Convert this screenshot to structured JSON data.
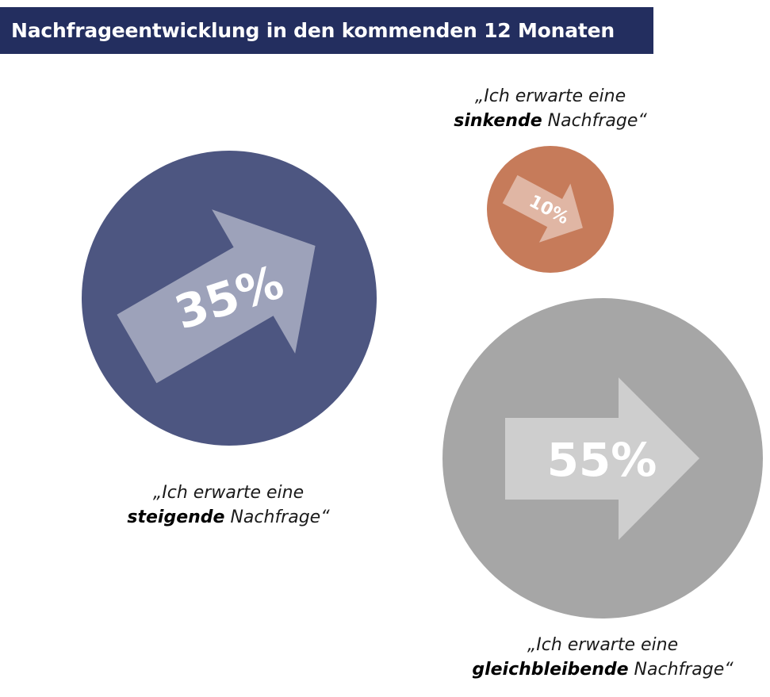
{
  "title": "Nachfrageentwicklung in den kommenden 12 Monaten",
  "colors": {
    "title_bg": "#232e5f",
    "rising": "#4d5681",
    "falling": "#c67b5a",
    "steady": "#a6a6a6",
    "label": "#ffffff"
  },
  "chart_data": {
    "type": "bubble",
    "title": "Nachfrageentwicklung in den kommenden 12 Monaten",
    "unit": "%",
    "series": [
      {
        "key": "rising",
        "value": 35,
        "label": "35%",
        "arrow_direction": "up-right",
        "caption_line1": "„Ich erwarte eine",
        "caption_bold": "steigende",
        "caption_rest": " Nachfrage“"
      },
      {
        "key": "falling",
        "value": 10,
        "label": "10%",
        "arrow_direction": "down-right",
        "caption_line1": "„Ich erwarte eine",
        "caption_bold": "sinkende",
        "caption_rest": " Nachfrage“"
      },
      {
        "key": "steady",
        "value": 55,
        "label": "55%",
        "arrow_direction": "right",
        "caption_line1": "„Ich erwarte eine",
        "caption_bold": "gleichbleibende",
        "caption_rest": " Nachfrage“"
      }
    ]
  }
}
